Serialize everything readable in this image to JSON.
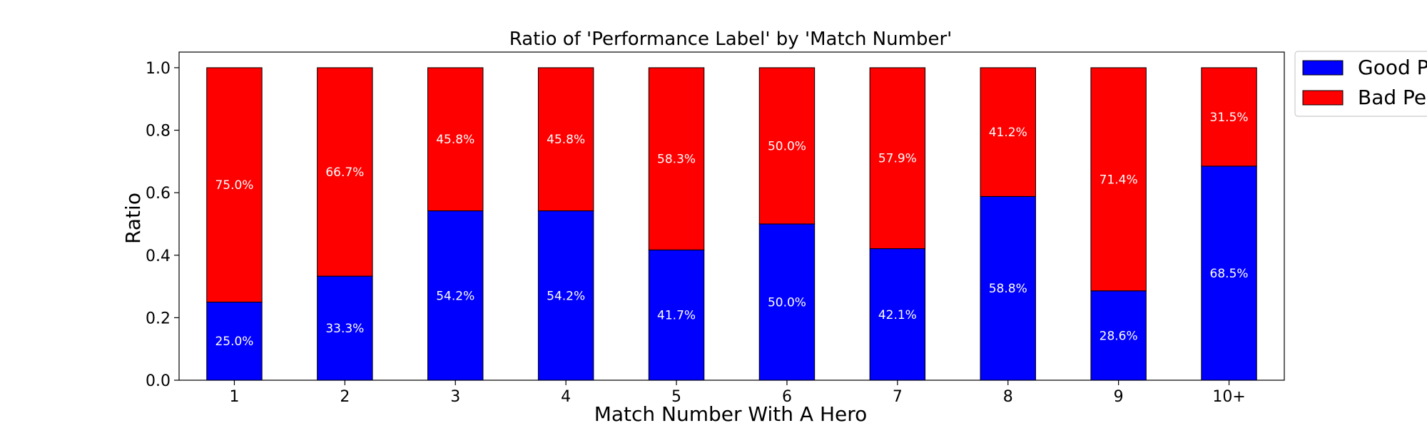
{
  "chart_data": {
    "type": "bar",
    "stacked": true,
    "title": "Ratio of 'Performance Label' by 'Match Number'",
    "xlabel": "Match Number With A Hero",
    "ylabel": "Ratio",
    "ylim": [
      0,
      1.05
    ],
    "yticks": [
      "0.0",
      "0.2",
      "0.4",
      "0.6",
      "0.8",
      "1.0"
    ],
    "categories": [
      "1",
      "2",
      "3",
      "4",
      "5",
      "6",
      "7",
      "8",
      "9",
      "10+"
    ],
    "series": [
      {
        "name": "Good P",
        "color": "#0000ff",
        "values": [
          0.25,
          0.333,
          0.542,
          0.542,
          0.417,
          0.5,
          0.421,
          0.588,
          0.286,
          0.685
        ],
        "labels": [
          "25.0%",
          "33.3%",
          "54.2%",
          "54.2%",
          "41.7%",
          "50.0%",
          "42.1%",
          "58.8%",
          "28.6%",
          "68.5%"
        ]
      },
      {
        "name": "Bad Pe",
        "color": "#ff0000",
        "values": [
          0.75,
          0.667,
          0.458,
          0.458,
          0.583,
          0.5,
          0.579,
          0.412,
          0.714,
          0.315
        ],
        "labels": [
          "75.0%",
          "66.7%",
          "45.8%",
          "45.8%",
          "58.3%",
          "50.0%",
          "57.9%",
          "41.2%",
          "71.4%",
          "31.5%"
        ]
      }
    ],
    "legend_position": "top-right-outside",
    "grid": false
  }
}
